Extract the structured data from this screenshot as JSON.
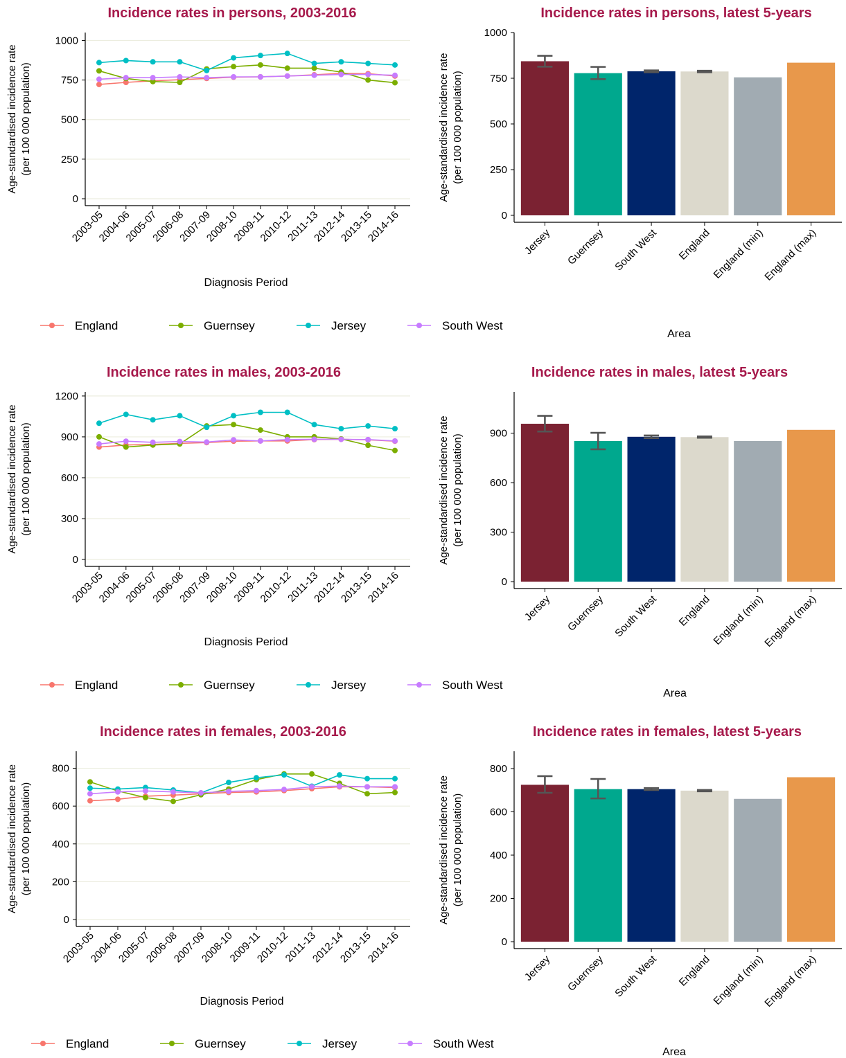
{
  "colors": {
    "title": "#A6194B",
    "grid": "#ECEDDF",
    "axis": "#000000",
    "error_bar": "#555555",
    "series": {
      "England": "#F8766D",
      "Guernsey": "#7CAE00",
      "Jersey": "#00BFC4",
      "South West": "#C77CFF"
    },
    "bars": [
      "#7B2232",
      "#00A88E",
      "#00256B",
      "#DCD9CC",
      "#A1ABB2",
      "#E8984B"
    ]
  },
  "chart_data": [
    {
      "id": "persons-trend",
      "type": "line",
      "title": "Incidence rates in persons, 2003-2016",
      "xlabel": "Diagnosis Period",
      "ylabel": "Age-standardised incidence rate",
      "ylabel2": "(per 100 000 population)",
      "x": [
        "2003-05",
        "2004-06",
        "2005-07",
        "2006-08",
        "2007-09",
        "2008-10",
        "2009-11",
        "2010-12",
        "2011-13",
        "2012-14",
        "2013-15",
        "2014-16"
      ],
      "ylim": [
        0,
        1050
      ],
      "yticks": [
        0,
        250,
        500,
        750,
        1000
      ],
      "grid": true,
      "legend": "bottom",
      "series": [
        {
          "name": "England",
          "values": [
            722,
            735,
            745,
            752,
            760,
            768,
            770,
            775,
            783,
            792,
            790,
            775
          ]
        },
        {
          "name": "Guernsey",
          "values": [
            808,
            760,
            740,
            735,
            820,
            835,
            845,
            825,
            825,
            800,
            750,
            733
          ]
        },
        {
          "name": "Jersey",
          "values": [
            860,
            873,
            865,
            865,
            810,
            890,
            905,
            918,
            855,
            865,
            855,
            845
          ]
        },
        {
          "name": "South West",
          "values": [
            755,
            765,
            765,
            770,
            765,
            770,
            770,
            775,
            780,
            785,
            785,
            780
          ]
        }
      ]
    },
    {
      "id": "persons-bars",
      "type": "bar",
      "title": "Incidence rates in persons, latest 5-years",
      "xlabel": "Area",
      "ylabel": "Age-standardised incidence rate",
      "ylabel2": "(per 100 000 population)",
      "categories": [
        "Jersey",
        "Guernsey",
        "South West",
        "England",
        "England (min)",
        "England (max)"
      ],
      "values": [
        843,
        778,
        788,
        787,
        755,
        835
      ],
      "error_low": [
        813,
        745,
        783,
        783,
        null,
        null
      ],
      "error_high": [
        873,
        812,
        793,
        791,
        null,
        null
      ],
      "ylim": [
        0,
        1000
      ],
      "yticks": [
        0,
        250,
        500,
        750,
        1000
      ]
    },
    {
      "id": "males-trend",
      "type": "line",
      "title": "Incidence rates in males, 2003-2016",
      "xlabel": "Diagnosis Period",
      "ylabel": "Age-standardised incidence rate",
      "ylabel2": "(per 100 000 population)",
      "x": [
        "2003-05",
        "2004-06",
        "2005-07",
        "2006-08",
        "2007-09",
        "2008-10",
        "2009-11",
        "2010-12",
        "2011-13",
        "2012-14",
        "2013-15",
        "2014-16"
      ],
      "ylim": [
        0,
        1230
      ],
      "yticks": [
        0,
        300,
        600,
        900,
        1200
      ],
      "grid": true,
      "legend": "bottom",
      "series": [
        {
          "name": "England",
          "values": [
            825,
            840,
            845,
            852,
            858,
            868,
            870,
            870,
            880,
            882,
            878,
            868
          ]
        },
        {
          "name": "Guernsey",
          "values": [
            900,
            825,
            840,
            848,
            980,
            990,
            950,
            900,
            900,
            885,
            838,
            800
          ]
        },
        {
          "name": "Jersey",
          "values": [
            1000,
            1065,
            1025,
            1055,
            970,
            1055,
            1080,
            1080,
            990,
            960,
            980,
            960
          ]
        },
        {
          "name": "South West",
          "values": [
            848,
            868,
            860,
            866,
            862,
            878,
            870,
            880,
            882,
            882,
            880,
            870
          ]
        }
      ]
    },
    {
      "id": "males-bars",
      "type": "bar",
      "title": "Incidence rates in males, latest 5-years",
      "xlabel": "Area",
      "ylabel": "Age-standardised incidence rate",
      "ylabel2": "(per 100 000 population)",
      "categories": [
        "Jersey",
        "Guernsey",
        "South West",
        "England",
        "England (min)",
        "England (max)"
      ],
      "values": [
        957,
        852,
        878,
        876,
        852,
        920
      ],
      "error_low": [
        910,
        802,
        870,
        872,
        null,
        null
      ],
      "error_high": [
        1005,
        902,
        886,
        880,
        null,
        null
      ],
      "ylim": [
        0,
        1150
      ],
      "yticks": [
        0,
        300,
        600,
        900
      ]
    },
    {
      "id": "females-trend",
      "type": "line",
      "title": "Incidence rates in females, 2003-2016",
      "xlabel": "Diagnosis Period",
      "ylabel": "Age-standardised incidence rate",
      "ylabel2": "(per 100 000 population)",
      "x": [
        "2003-05",
        "2004-06",
        "2005-07",
        "2006-08",
        "2007-09",
        "2008-10",
        "2009-11",
        "2010-12",
        "2011-13",
        "2012-14",
        "2013-15",
        "2014-16"
      ],
      "ylim": [
        0,
        890
      ],
      "yticks": [
        0,
        200,
        400,
        600,
        800
      ],
      "grid": true,
      "legend": "bottom",
      "series": [
        {
          "name": "England",
          "values": [
            628,
            636,
            652,
            658,
            665,
            672,
            675,
            682,
            692,
            702,
            702,
            698
          ]
        },
        {
          "name": "Guernsey",
          "values": [
            728,
            680,
            645,
            625,
            660,
            690,
            740,
            770,
            770,
            720,
            665,
            672
          ]
        },
        {
          "name": "Jersey",
          "values": [
            695,
            690,
            698,
            685,
            670,
            725,
            750,
            765,
            705,
            765,
            745,
            745
          ]
        },
        {
          "name": "South West",
          "values": [
            665,
            675,
            680,
            675,
            670,
            678,
            682,
            688,
            702,
            706,
            702,
            702
          ]
        }
      ]
    },
    {
      "id": "females-bars",
      "type": "bar",
      "title": "Incidence rates in females, latest 5-years",
      "xlabel": "Area",
      "ylabel": "Age-standardised incidence rate",
      "ylabel2": "(per 100 000 population)",
      "categories": [
        "Jersey",
        "Guernsey",
        "South West",
        "England",
        "England (min)",
        "England (max)"
      ],
      "values": [
        725,
        705,
        705,
        698,
        660,
        760
      ],
      "error_low": [
        688,
        662,
        701,
        695,
        null,
        null
      ],
      "error_high": [
        765,
        752,
        710,
        701,
        null,
        null
      ],
      "ylim": [
        0,
        880
      ],
      "yticks": [
        0,
        200,
        400,
        600,
        800
      ]
    }
  ]
}
